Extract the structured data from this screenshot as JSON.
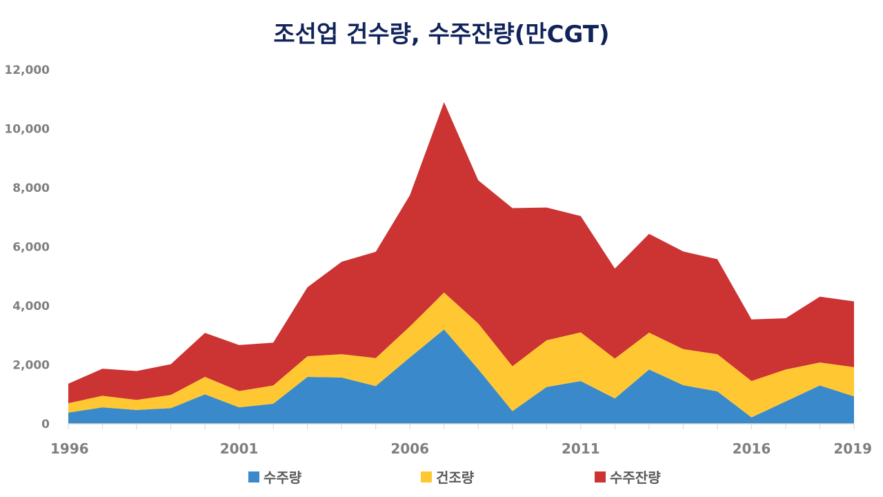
{
  "chart_data": {
    "type": "area",
    "stacked": true,
    "title": "조선업 건수량, 수주잔량(만CGT)",
    "x": [
      1996,
      1997,
      1998,
      1999,
      2000,
      2001,
      2002,
      2003,
      2004,
      2005,
      2006,
      2007,
      2008,
      2009,
      2010,
      2011,
      2012,
      2013,
      2014,
      2015,
      2016,
      2017,
      2018,
      2019
    ],
    "x_tick_labels": [
      "1996",
      "2001",
      "2006",
      "2011",
      "2016",
      "2019"
    ],
    "y_tick_labels": [
      "0",
      "2,000",
      "4,000",
      "6,000",
      "8,000",
      "10,000",
      "12,000"
    ],
    "ylim": [
      0,
      12000
    ],
    "legend_position": "bottom",
    "series": [
      {
        "name": "수주량",
        "color": "#3a8acb",
        "values": [
          380,
          560,
          470,
          530,
          1000,
          560,
          680,
          1590,
          1570,
          1280,
          2250,
          3200,
          1850,
          430,
          1250,
          1450,
          860,
          1840,
          1310,
          1100,
          220,
          760,
          1300,
          930
        ]
      },
      {
        "name": "건조량",
        "color": "#ffc832",
        "values": [
          320,
          390,
          340,
          450,
          590,
          550,
          620,
          700,
          790,
          950,
          1050,
          1250,
          1550,
          1520,
          1580,
          1650,
          1350,
          1250,
          1220,
          1260,
          1230,
          1080,
          780,
          990
        ]
      },
      {
        "name": "수주잔량",
        "color": "#cc3333",
        "values": [
          660,
          920,
          980,
          1040,
          1490,
          1560,
          1450,
          2340,
          3130,
          3600,
          4450,
          6450,
          4850,
          5360,
          4500,
          3940,
          3050,
          3350,
          3310,
          3220,
          2090,
          1740,
          2230,
          2230
        ]
      }
    ]
  }
}
